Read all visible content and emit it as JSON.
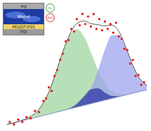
{
  "chart_data": {
    "type": "scatter",
    "tick_labels": false,
    "xlim": [
      0,
      100
    ],
    "ylim": [
      0,
      100
    ],
    "x": [
      0,
      5,
      10,
      15,
      20,
      25,
      30,
      35,
      40,
      45,
      50,
      55,
      60,
      65,
      70,
      75,
      80,
      85,
      90,
      95,
      100
    ],
    "series": [
      {
        "type": "area",
        "color": "#9fd4a0",
        "values": [
          3,
          4.4,
          6.1,
          8.3,
          12,
          18.5,
          29.4,
          44.7,
          61.8,
          75.2,
          79.8,
          74,
          61.2,
          47.1,
          36.2,
          30,
          27.6,
          27.5,
          28.4,
          29.6,
          31
        ]
      },
      {
        "type": "area",
        "color": "#9ea6ec",
        "values": [
          3,
          4.4,
          5.8,
          7.2,
          8.6,
          10,
          11.4,
          12.8,
          14.2,
          15.9,
          18.4,
          23,
          32.1,
          46.5,
          63.3,
          75,
          75.2,
          64.6,
          50.4,
          39.9,
          34.7
        ]
      },
      {
        "type": "area",
        "color": "#2f3aa6",
        "values": [
          3,
          4.4,
          5.8,
          7.2,
          8.6,
          10,
          11.4,
          12.8,
          14.2,
          16.2,
          19.8,
          25.7,
          31.3,
          32.2,
          28.8,
          26.1,
          25.8,
          26.8,
          28.2,
          29.6,
          31
        ]
      },
      {
        "type": "line",
        "color": "#8a90b8",
        "values": [
          3,
          4.4,
          5.8,
          7.2,
          8.6,
          10,
          11.4,
          12.8,
          14.2,
          15.6,
          17,
          18.4,
          19.8,
          21.2,
          22.6,
          24,
          25.4,
          26.8,
          28.2,
          29.6,
          31
        ]
      },
      {
        "type": "line",
        "color": "#555555",
        "values": [
          3,
          4.4,
          6.1,
          8.3,
          12,
          18.5,
          29.4,
          44.7,
          61.8,
          75.8,
          84.4,
          86.5,
          84.3,
          83.5,
          82.5,
          83.1,
          78,
          65.3,
          50.6,
          39.9,
          34.7
        ]
      },
      {
        "type": "scatter",
        "color": "#e3231c",
        "marker": "circle",
        "x": [
          2,
          5,
          8,
          11,
          14,
          17,
          20,
          23,
          26,
          28,
          30,
          32,
          34,
          36,
          38,
          40,
          42,
          44,
          46,
          48,
          50,
          52,
          54,
          56,
          58,
          60,
          62,
          64,
          66,
          68,
          70,
          72,
          74,
          76,
          78,
          80,
          82,
          84,
          86,
          88,
          90,
          92,
          94,
          96,
          98
        ],
        "values": [
          5,
          3,
          7,
          5,
          9,
          8,
          14,
          13,
          22,
          24,
          33,
          30,
          42,
          47,
          55,
          60,
          70,
          71,
          80,
          78,
          88,
          83,
          92,
          84,
          90,
          82,
          92,
          80,
          88,
          79,
          86,
          80,
          84,
          77,
          85,
          74,
          72,
          64,
          63,
          52,
          55,
          42,
          43,
          35,
          37
        ]
      }
    ]
  },
  "inset": {
    "layers": [
      "Ag",
      "Blend",
      "PEDOT:PSS",
      "ITO"
    ],
    "icons": [
      {
        "label": "O₂",
        "color": "#2e9b3a"
      },
      {
        "label": "H₂O",
        "color": "#d42a2a"
      }
    ]
  }
}
